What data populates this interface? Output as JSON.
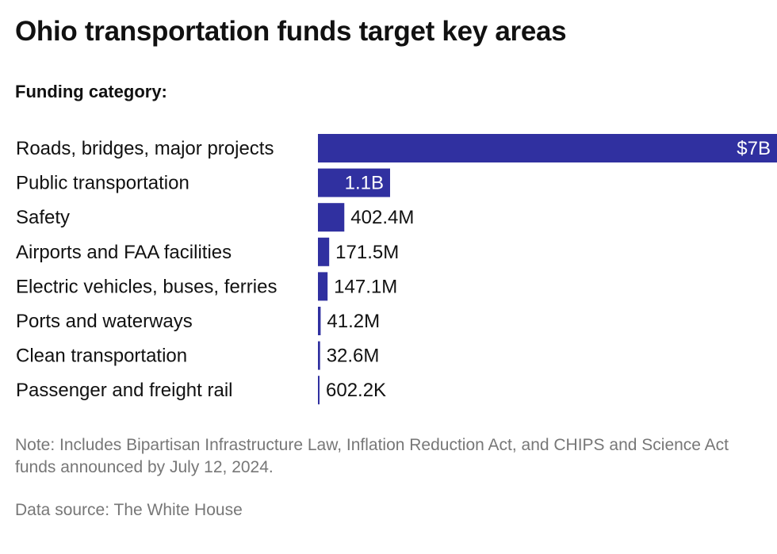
{
  "title": "Ohio transportation funds target key areas",
  "subtitle": "Funding category:",
  "note": "Note: Includes Bipartisan Infrastructure Law, Inflation Reduction Act, and CHIPS and Science Act funds announced by July 12, 2024.",
  "source": "Data source: The White House",
  "colors": {
    "bar": "#3030a0",
    "label_inside": "#ffffff",
    "label_outside": "#111111"
  },
  "chart_data": {
    "type": "bar",
    "orientation": "horizontal",
    "categories": [
      "Roads, bridges, major projects",
      "Public transportation",
      "Safety",
      "Airports and FAA facilities",
      "Electric vehicles, buses, ferries",
      "Ports and waterways",
      "Clean transportation",
      "Passenger and freight rail"
    ],
    "values": [
      7000000000,
      1100000000,
      402400000,
      171500000,
      147100000,
      41200000,
      32600000,
      602200
    ],
    "value_labels": [
      "$7B",
      "1.1B",
      "402.4M",
      "171.5M",
      "147.1M",
      "41.2M",
      "32.6M",
      "602.2K"
    ],
    "xlim": [
      0,
      7000000000
    ],
    "grid": false,
    "legend": "none"
  }
}
